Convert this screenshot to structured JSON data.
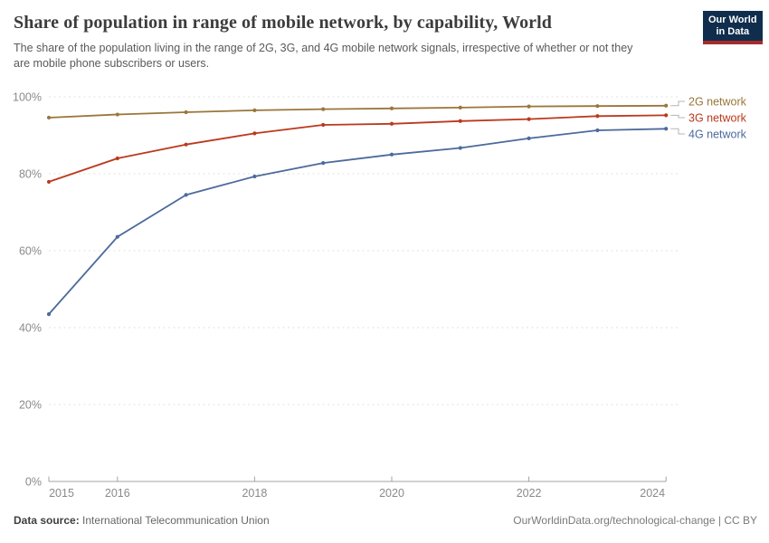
{
  "header": {
    "title": "Share of population in range of mobile network, by capability, World",
    "subtitle": "The share of the population living in the range of 2G, 3G, and 4G mobile network signals, irrespective of whether or not they are mobile phone subscribers or users.",
    "logo": {
      "line1": "Our World",
      "line2": "in Data",
      "bg_color": "#102d4d",
      "accent_color": "#a52c2c"
    }
  },
  "chart_data": {
    "type": "line",
    "title": "Share of population in range of mobile network, by capability, World",
    "x": [
      2015,
      2016,
      2017,
      2018,
      2019,
      2020,
      2021,
      2022,
      2023,
      2024
    ],
    "series": [
      {
        "name": "2G network",
        "color": "#9a763a",
        "values": [
          94.6,
          95.4,
          96.0,
          96.5,
          96.8,
          97.0,
          97.2,
          97.5,
          97.6,
          97.7
        ]
      },
      {
        "name": "3G network",
        "color": "#bb391d",
        "values": [
          77.9,
          84.0,
          87.6,
          90.5,
          92.7,
          93.0,
          93.7,
          94.2,
          95.0,
          95.2
        ]
      },
      {
        "name": "4G network",
        "color": "#4c6a9c",
        "values": [
          43.5,
          63.6,
          74.5,
          79.3,
          82.8,
          85.0,
          86.7,
          89.2,
          91.3,
          91.7
        ]
      }
    ],
    "ylim": [
      0,
      100
    ],
    "yticks": [
      "0%",
      "20%",
      "40%",
      "60%",
      "80%",
      "100%"
    ],
    "xticks": [
      "2015",
      "2016",
      "2018",
      "2020",
      "2022",
      "2024"
    ],
    "grid": "horizontal-dashed",
    "legend_position": "right-edge-labels",
    "colors": {
      "gridline": "#e2e2e2",
      "axis": "#a3a3a3",
      "tick_label": "#8a8a8a",
      "connector": "#b5b5b5"
    }
  },
  "footer": {
    "source_label": "Data source:",
    "source_value": "International Telecommunication Union",
    "link": "OurWorldinData.org/technological-change | CC BY"
  }
}
